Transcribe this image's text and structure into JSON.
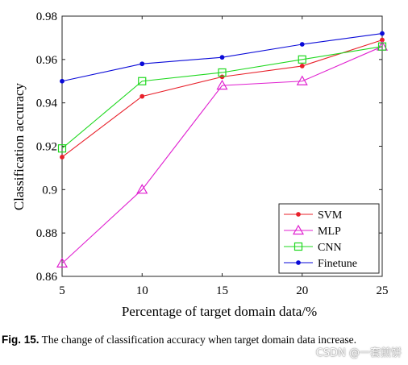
{
  "chart_data": {
    "type": "line",
    "x": [
      5,
      10,
      15,
      20,
      25
    ],
    "xlabel": "Percentage of target domain data/%",
    "ylabel": "Classification accuracy",
    "xlim": [
      5,
      25
    ],
    "ylim": [
      0.86,
      0.98
    ],
    "xticks": [
      "5",
      "10",
      "15",
      "20",
      "25"
    ],
    "yticks": [
      "0.86",
      "0.88",
      "0.9",
      "0.92",
      "0.94",
      "0.96",
      "0.98"
    ],
    "ytick_values": [
      0.86,
      0.88,
      0.9,
      0.92,
      0.94,
      0.96,
      0.98
    ],
    "grid": false,
    "legend_position": "bottom-right",
    "series": [
      {
        "name": "SVM",
        "values": [
          0.915,
          0.943,
          0.952,
          0.957,
          0.969
        ],
        "color": "#e8202a",
        "marker": "dot"
      },
      {
        "name": "MLP",
        "values": [
          0.866,
          0.9,
          0.948,
          0.95,
          0.966
        ],
        "color": "#e020d0",
        "marker": "triangle"
      },
      {
        "name": "CNN",
        "values": [
          0.919,
          0.95,
          0.954,
          0.96,
          0.966
        ],
        "color": "#1fd81f",
        "marker": "square"
      },
      {
        "name": "Finetune",
        "values": [
          0.95,
          0.958,
          0.961,
          0.967,
          0.972
        ],
        "color": "#0a0ad8",
        "marker": "dot"
      }
    ]
  },
  "caption": {
    "label": "Fig.  15.",
    "text": "The  change  of  classification  accuracy  when  target  domain data increase."
  },
  "watermark": "CSDN @一套煎饼"
}
